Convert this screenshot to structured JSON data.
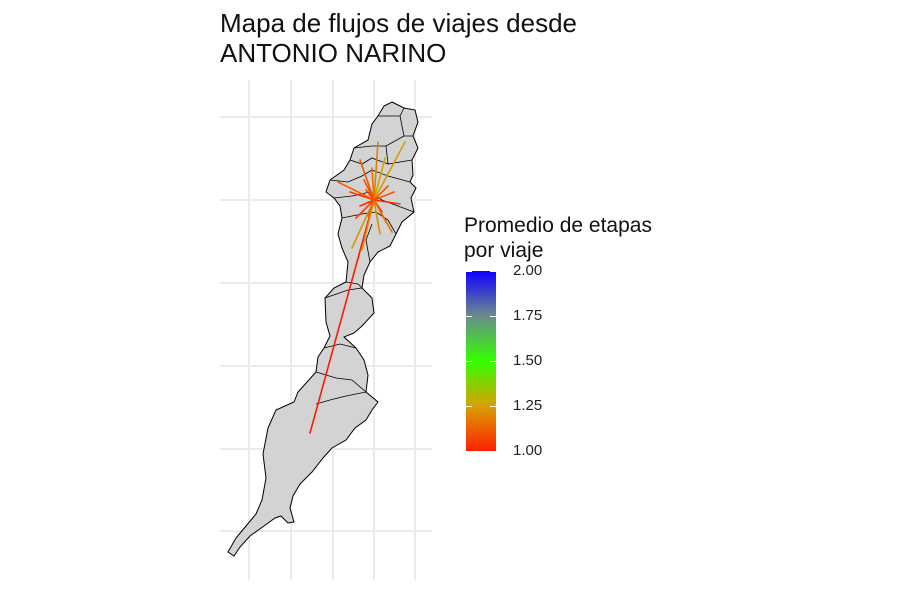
{
  "title": {
    "line1": "Mapa de flujos de viajes desde",
    "line2": "ANTONIO NARINO"
  },
  "legend": {
    "title_line1": "Promedio de etapas",
    "title_line2": "por viaje",
    "ticks": [
      "2.00",
      "1.75",
      "1.50",
      "1.25",
      "1.00"
    ],
    "range": [
      1.0,
      2.0
    ],
    "colors": [
      "#ff2000",
      "#d9a000",
      "#33ff00",
      "#6b8c8c",
      "#1000ff"
    ]
  },
  "map": {
    "fill_color": "#d3d3d3",
    "border_color": "#000000",
    "grid": true,
    "flows_note_colors": {
      "low": "#ff2000",
      "mid": "#d9a000"
    }
  }
}
